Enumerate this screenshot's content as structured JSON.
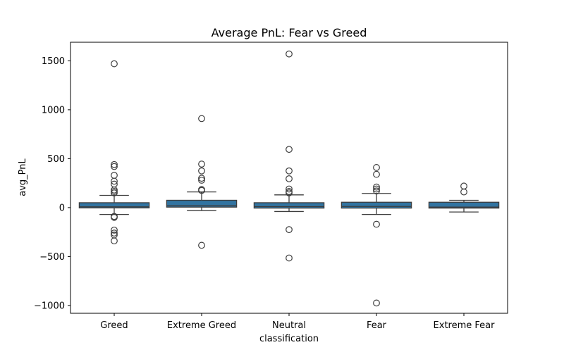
{
  "chart_data": {
    "type": "box",
    "title": "Average PnL: Fear vs Greed",
    "xlabel": "classification",
    "ylabel": "avg_PnL",
    "ylim": [
      -1080,
      1690
    ],
    "yticks": [
      -1000,
      -500,
      0,
      500,
      1000,
      1500
    ],
    "ytick_labels": [
      "−1000",
      "−500",
      "0",
      "500",
      "1000",
      "1500"
    ],
    "grid": false,
    "colors": {
      "box": "#3274a1",
      "edge": "#3d3d3d"
    },
    "categories": [
      "Greed",
      "Extreme Greed",
      "Neutral",
      "Fear",
      "Extreme Fear"
    ],
    "boxes": [
      {
        "category": "Greed",
        "whisker_low": -70,
        "q1": -3,
        "median": 8,
        "q3": 50,
        "whisker_high": 125,
        "outliers": [
          1470,
          440,
          420,
          330,
          270,
          240,
          180,
          165,
          150,
          -90,
          -100,
          -230,
          -260,
          -280,
          -340
        ]
      },
      {
        "category": "Extreme Greed",
        "whisker_low": -30,
        "q1": 5,
        "median": 20,
        "q3": 75,
        "whisker_high": 160,
        "outliers": [
          910,
          445,
          375,
          300,
          280,
          185,
          175,
          -385
        ]
      },
      {
        "category": "Neutral",
        "whisker_low": -40,
        "q1": -5,
        "median": 10,
        "q3": 50,
        "whisker_high": 130,
        "outliers": [
          1570,
          595,
          375,
          295,
          190,
          165,
          150,
          -225,
          -515
        ]
      },
      {
        "category": "Fear",
        "whisker_low": -70,
        "q1": -5,
        "median": 12,
        "q3": 55,
        "whisker_high": 145,
        "outliers": [
          410,
          340,
          210,
          190,
          170,
          -170,
          -975
        ]
      },
      {
        "category": "Extreme Fear",
        "whisker_low": -45,
        "q1": -5,
        "median": 5,
        "q3": 55,
        "whisker_high": 75,
        "outliers": [
          220,
          160
        ]
      }
    ]
  }
}
